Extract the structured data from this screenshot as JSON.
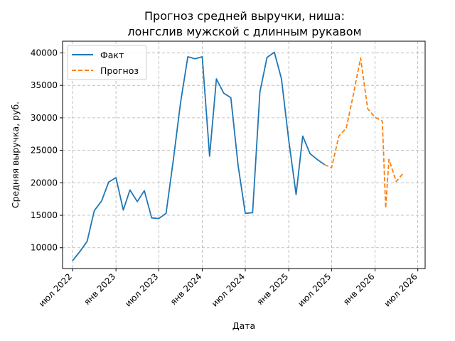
{
  "chart_data": {
    "type": "line",
    "title": [
      "Прогноз средней выручки, ниша:",
      "лонгслив мужской с длинным рукавом"
    ],
    "xlabel": "Дата",
    "ylabel": "Средняя выручка, руб.",
    "xlim": [
      "2022-05-20",
      "2026-08-01"
    ],
    "ylim": [
      6800,
      41800
    ],
    "x_ticks": [
      {
        "date": "2022-07-01",
        "label": "июл 2022"
      },
      {
        "date": "2023-01-01",
        "label": "янв 2023"
      },
      {
        "date": "2023-07-01",
        "label": "июл 2023"
      },
      {
        "date": "2024-01-01",
        "label": "янв 2024"
      },
      {
        "date": "2024-07-01",
        "label": "июл 2024"
      },
      {
        "date": "2025-01-01",
        "label": "янв 2025"
      },
      {
        "date": "2025-07-01",
        "label": "июл 2025"
      },
      {
        "date": "2026-01-01",
        "label": "янв 2026"
      },
      {
        "date": "2026-07-01",
        "label": "июл 2026"
      }
    ],
    "y_ticks": [
      10000,
      15000,
      20000,
      25000,
      30000,
      35000,
      40000
    ],
    "grid": true,
    "legend_position": "top-left",
    "series": [
      {
        "name": "Факт",
        "color": "#1f77b4",
        "style": "solid",
        "points": [
          [
            "2022-07-01",
            8000
          ],
          [
            "2022-08-01",
            9400
          ],
          [
            "2022-09-01",
            11000
          ],
          [
            "2022-10-01",
            15700
          ],
          [
            "2022-11-01",
            17200
          ],
          [
            "2022-12-01",
            20100
          ],
          [
            "2023-01-01",
            20800
          ],
          [
            "2023-02-01",
            15800
          ],
          [
            "2023-03-01",
            18900
          ],
          [
            "2023-04-01",
            17100
          ],
          [
            "2023-05-01",
            18800
          ],
          [
            "2023-06-01",
            14600
          ],
          [
            "2023-07-01",
            14500
          ],
          [
            "2023-08-01",
            15300
          ],
          [
            "2023-09-01",
            23600
          ],
          [
            "2023-10-01",
            32300
          ],
          [
            "2023-11-01",
            39400
          ],
          [
            "2023-12-01",
            39100
          ],
          [
            "2024-01-01",
            39400
          ],
          [
            "2024-02-01",
            24100
          ],
          [
            "2024-03-01",
            36000
          ],
          [
            "2024-04-01",
            33800
          ],
          [
            "2024-05-01",
            33100
          ],
          [
            "2024-06-01",
            22600
          ],
          [
            "2024-07-01",
            15300
          ],
          [
            "2024-08-01",
            15400
          ],
          [
            "2024-09-01",
            34000
          ],
          [
            "2024-10-01",
            39300
          ],
          [
            "2024-11-01",
            40100
          ],
          [
            "2024-12-01",
            36000
          ],
          [
            "2025-01-01",
            26500
          ],
          [
            "2025-02-01",
            18200
          ],
          [
            "2025-03-01",
            27200
          ],
          [
            "2025-04-01",
            24500
          ],
          [
            "2025-05-01",
            23600
          ],
          [
            "2025-06-01",
            22800
          ]
        ]
      },
      {
        "name": "Прогноз",
        "color": "#ff7f0e",
        "style": "dashed",
        "points": [
          [
            "2025-06-01",
            22800
          ],
          [
            "2025-07-01",
            22300
          ],
          [
            "2025-08-01",
            27200
          ],
          [
            "2025-09-01",
            28400
          ],
          [
            "2025-10-01",
            33500
          ],
          [
            "2025-11-01",
            39200
          ],
          [
            "2025-12-01",
            31400
          ],
          [
            "2026-01-01",
            30100
          ],
          [
            "2026-02-01",
            29500
          ],
          [
            "2026-02-15",
            16100
          ],
          [
            "2026-03-01",
            23600
          ],
          [
            "2026-04-01",
            20200
          ],
          [
            "2026-05-01",
            21500
          ]
        ]
      }
    ]
  }
}
